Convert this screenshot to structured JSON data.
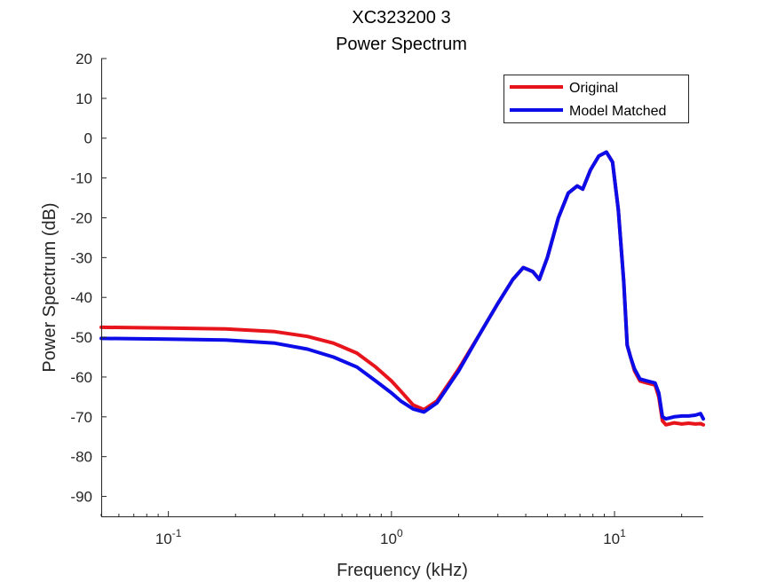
{
  "chart_data": {
    "type": "line",
    "title": "XC323200 3",
    "subtitle": "Power Spectrum",
    "xlabel": "Frequency (kHz)",
    "ylabel": "Power Spectrum (dB)",
    "x_scale": "log",
    "xlim": [
      0.05,
      25
    ],
    "ylim": [
      -95,
      20
    ],
    "yticks": [
      20,
      10,
      0,
      -10,
      -20,
      -30,
      -40,
      -50,
      -60,
      -70,
      -80,
      -90
    ],
    "xtick_labels": [
      {
        "value": 0.1,
        "base": "10",
        "exp": "-1"
      },
      {
        "value": 1,
        "base": "10",
        "exp": "0"
      },
      {
        "value": 10,
        "base": "10",
        "exp": "1"
      }
    ],
    "grid": false,
    "legend_position": "top-right",
    "series": [
      {
        "name": "Original",
        "color": "#e8141c",
        "x": [
          0.05,
          0.1,
          0.18,
          0.3,
          0.42,
          0.55,
          0.7,
          0.85,
          1.0,
          1.1,
          1.25,
          1.4,
          1.6,
          2.0,
          2.5,
          3.0,
          3.5,
          3.9,
          4.3,
          4.6,
          5.0,
          5.6,
          6.2,
          6.8,
          7.2,
          7.8,
          8.5,
          9.2,
          9.8,
          10.4,
          11.0,
          11.4,
          11.8,
          12.3,
          13.0,
          14.0,
          15.2,
          15.8,
          16.4,
          17.0,
          17.6,
          18.5,
          20.0,
          21.5,
          23.0,
          24.3,
          25.0
        ],
        "y": [
          -47.5,
          -47.7,
          -47.9,
          -48.6,
          -49.8,
          -51.5,
          -54.0,
          -57.5,
          -61.0,
          -63.5,
          -67.0,
          -68.2,
          -66.0,
          -58.0,
          -49.0,
          -41.5,
          -35.5,
          -32.5,
          -33.5,
          -35.5,
          -30.0,
          -20.0,
          -13.8,
          -12.0,
          -12.8,
          -8.0,
          -4.5,
          -3.5,
          -6.0,
          -18.0,
          -36.0,
          -52.0,
          -55.0,
          -58.5,
          -61.0,
          -61.5,
          -62.0,
          -65.0,
          -71.0,
          -72.0,
          -71.8,
          -71.5,
          -71.8,
          -71.6,
          -71.8,
          -71.7,
          -72.0
        ]
      },
      {
        "name": "Model Matched",
        "color": "#0c0ce8",
        "x": [
          0.05,
          0.1,
          0.18,
          0.3,
          0.42,
          0.55,
          0.7,
          0.85,
          1.0,
          1.1,
          1.25,
          1.4,
          1.6,
          2.0,
          2.5,
          3.0,
          3.5,
          3.9,
          4.3,
          4.6,
          5.0,
          5.6,
          6.2,
          6.8,
          7.2,
          7.8,
          8.5,
          9.2,
          9.8,
          10.4,
          11.0,
          11.4,
          11.8,
          12.3,
          13.0,
          14.0,
          15.2,
          15.8,
          16.4,
          17.0,
          17.6,
          18.5,
          20.0,
          21.5,
          23.0,
          24.3,
          25.0
        ],
        "y": [
          -50.3,
          -50.5,
          -50.7,
          -51.5,
          -53.0,
          -55.0,
          -57.5,
          -61.0,
          -64.0,
          -66.0,
          -68.0,
          -68.8,
          -66.5,
          -58.5,
          -49.0,
          -41.5,
          -35.5,
          -32.5,
          -33.5,
          -35.5,
          -30.0,
          -20.0,
          -13.8,
          -12.0,
          -12.8,
          -8.0,
          -4.5,
          -3.5,
          -6.0,
          -18.0,
          -36.0,
          -52.0,
          -55.0,
          -58.0,
          -60.5,
          -61.0,
          -61.5,
          -64.0,
          -70.0,
          -70.5,
          -70.3,
          -70.0,
          -69.8,
          -69.8,
          -69.6,
          -69.2,
          -70.5
        ]
      }
    ]
  }
}
